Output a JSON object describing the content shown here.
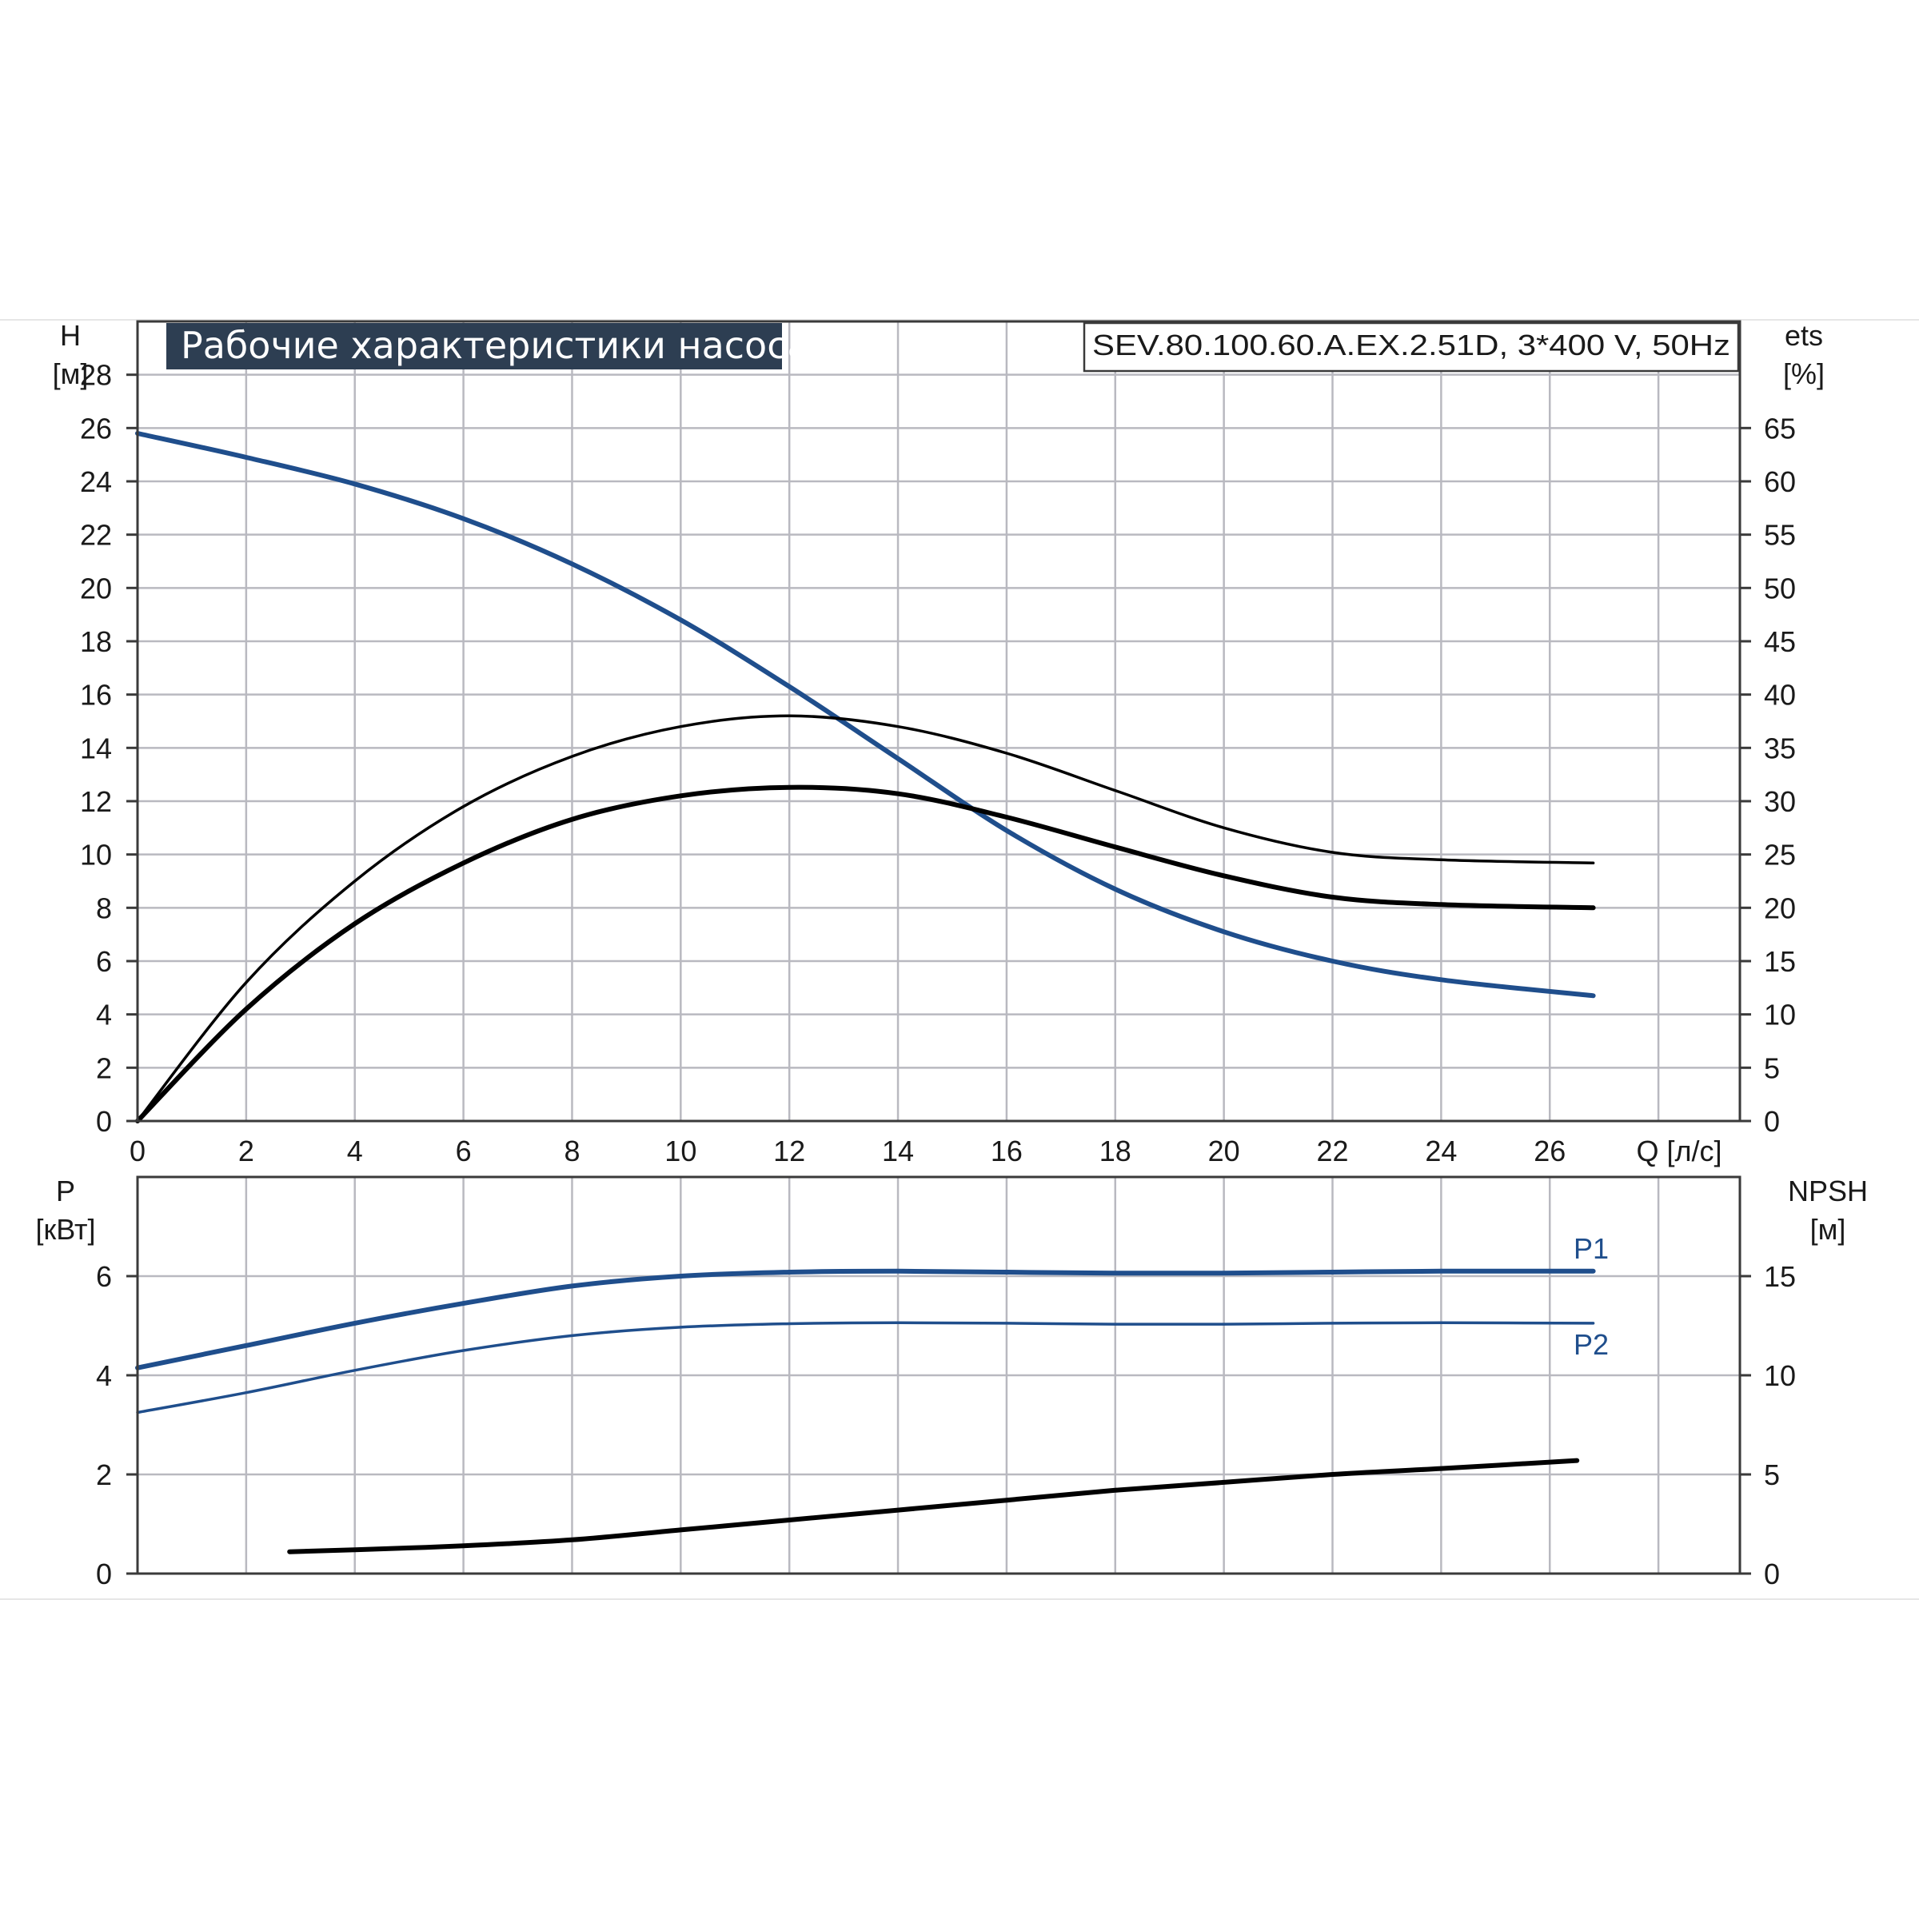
{
  "chart_data": [
    {
      "type": "line",
      "title": "Рабочие характеристики насоса",
      "model": "SEV.80.100.60.A.EX.2.51D, 3*400 V, 50Hz",
      "left_axis_name": "H",
      "left_axis_unit": "[м]",
      "right_axis_name": "ets",
      "right_axis_unit": "[%]",
      "x_axis_label": "Q [л/с]",
      "xlim": [
        0,
        29.5
      ],
      "ylim": [
        0,
        30
      ],
      "y2lim": [
        0,
        75
      ],
      "x_ticks": [
        "0",
        "2",
        "4",
        "6",
        "8",
        "10",
        "12",
        "14",
        "16",
        "18",
        "20",
        "22",
        "24",
        "26"
      ],
      "y_ticks": [
        "0",
        "2",
        "4",
        "6",
        "8",
        "10",
        "12",
        "14",
        "16",
        "18",
        "20",
        "22",
        "24",
        "26",
        "28"
      ],
      "y2_ticks": [
        "0",
        "5",
        "10",
        "15",
        "20",
        "25",
        "30",
        "35",
        "40",
        "45",
        "50",
        "55",
        "60",
        "65"
      ],
      "grid": true,
      "series": [
        {
          "axis": "left",
          "color": "#1f4e8c",
          "weight": "bold",
          "x": [
            0,
            2,
            4,
            6,
            8,
            10,
            12,
            14,
            16,
            18,
            20,
            22,
            24,
            26.8
          ],
          "y": [
            25.8,
            24.9,
            23.9,
            22.6,
            20.9,
            18.8,
            16.3,
            13.6,
            10.9,
            8.7,
            7.1,
            6.0,
            5.3,
            4.7
          ]
        },
        {
          "axis": "right",
          "color": "#000000",
          "weight": "thin",
          "x": [
            0,
            2,
            4,
            6,
            8,
            10,
            12,
            14,
            16,
            18,
            20,
            22,
            24,
            26.8
          ],
          "y": [
            0,
            13.0,
            22.5,
            29.5,
            34.2,
            37.0,
            38.0,
            37.0,
            34.5,
            31.0,
            27.5,
            25.2,
            24.5,
            24.2
          ]
        },
        {
          "axis": "right",
          "color": "#000000",
          "weight": "bold",
          "x": [
            0,
            2,
            4,
            6,
            8,
            10,
            12,
            14,
            16,
            18,
            20,
            22,
            24,
            26.8
          ],
          "y": [
            0,
            10.5,
            18.5,
            24.2,
            28.3,
            30.5,
            31.3,
            30.7,
            28.5,
            25.7,
            23.0,
            21.0,
            20.3,
            20.0
          ]
        }
      ]
    },
    {
      "type": "line",
      "left_axis_name": "P",
      "left_axis_unit": "[кВт]",
      "right_axis_name": "NPSH",
      "right_axis_unit": "[м]",
      "xlim": [
        0,
        29.5
      ],
      "ylim": [
        0,
        8
      ],
      "y2lim": [
        0,
        20
      ],
      "y_ticks": [
        "0",
        "2",
        "4",
        "6"
      ],
      "y2_ticks": [
        "0",
        "5",
        "10",
        "15"
      ],
      "grid": true,
      "series": [
        {
          "name": "P1",
          "axis": "left",
          "color": "#1f4e8c",
          "weight": "bold",
          "x": [
            0,
            2,
            4,
            6,
            8,
            10,
            12,
            14,
            16,
            18,
            20,
            22,
            24,
            26.8
          ],
          "y": [
            4.15,
            4.6,
            5.05,
            5.45,
            5.8,
            6.0,
            6.08,
            6.1,
            6.08,
            6.06,
            6.06,
            6.08,
            6.1,
            6.1
          ]
        },
        {
          "name": "P2",
          "axis": "left",
          "color": "#1f4e8c",
          "weight": "thin",
          "x": [
            0,
            2,
            4,
            6,
            8,
            10,
            12,
            14,
            16,
            18,
            20,
            22,
            24,
            26.8
          ],
          "y": [
            3.25,
            3.65,
            4.1,
            4.5,
            4.8,
            4.97,
            5.04,
            5.06,
            5.05,
            5.03,
            5.03,
            5.05,
            5.06,
            5.05
          ]
        },
        {
          "axis": "right",
          "color": "#000000",
          "weight": "bold",
          "x": [
            2.8,
            4,
            6,
            8,
            10,
            12,
            14,
            16,
            18,
            20,
            22,
            24,
            26.5
          ],
          "y": [
            1.1,
            1.2,
            1.4,
            1.7,
            2.2,
            2.7,
            3.2,
            3.7,
            4.2,
            4.6,
            5.0,
            5.3,
            5.7
          ]
        }
      ]
    }
  ]
}
